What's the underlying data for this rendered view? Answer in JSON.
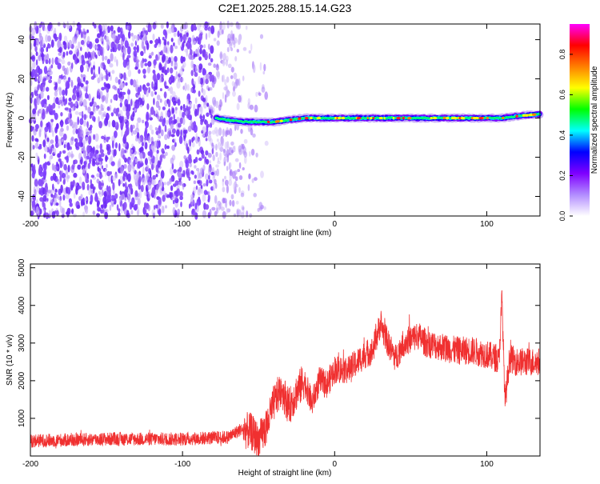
{
  "title": "C2E1.2025.288.15.14.G23",
  "chart_data": [
    {
      "type": "heatmap",
      "xlabel": "Height of straight line (km)",
      "ylabel": "Frequency (Hz)",
      "xlim": [
        -200,
        135
      ],
      "ylim": [
        -50,
        48
      ],
      "x_ticks": [
        -200,
        -100,
        0,
        100
      ],
      "y_ticks": [
        -40,
        -20,
        0,
        20,
        40
      ],
      "grid": false,
      "colorbar": {
        "label": "Normalized spectral amplitude",
        "range": [
          0,
          0.95
        ],
        "ticks": [
          0.0,
          0.2,
          0.4,
          0.6,
          0.8
        ],
        "colormap": [
          "#ffffff",
          "#b28cff",
          "#7f00ff",
          "#0000ff",
          "#00ffff",
          "#00ff00",
          "#ffff00",
          "#ff7f00",
          "#ff0000",
          "#ff00ff"
        ]
      },
      "noise_region_x": [
        -200,
        -40
      ],
      "noise_color": "#7f3fff",
      "signal_track": {
        "x": [
          -78,
          -70,
          -60,
          -50,
          -40,
          -30,
          -20,
          -10,
          0,
          20,
          40,
          60,
          80,
          100,
          105,
          110,
          120,
          135
        ],
        "y": [
          0,
          -1,
          -2,
          -2,
          -2,
          -1,
          0,
          0,
          0,
          0,
          0,
          0,
          0,
          0,
          0,
          0,
          1,
          2
        ]
      }
    },
    {
      "type": "line",
      "xlabel": "Height of straight line (km)",
      "ylabel": "SNR (10 * v/v)",
      "xlim": [
        -200,
        135
      ],
      "ylim": [
        0,
        5100
      ],
      "x_ticks": [
        -200,
        -100,
        0,
        100
      ],
      "y_ticks": [
        1000,
        2000,
        3000,
        4000,
        5000
      ],
      "grid": false,
      "series_color": "#f03030",
      "mean_profile": {
        "x": [
          -200,
          -150,
          -100,
          -70,
          -62,
          -55,
          -50,
          -45,
          -40,
          -35,
          -30,
          -25,
          -20,
          -15,
          -10,
          -5,
          0,
          10,
          20,
          25,
          30,
          35,
          40,
          45,
          50,
          55,
          60,
          70,
          80,
          90,
          100,
          106,
          108,
          110,
          112,
          115,
          120,
          130,
          135
        ],
        "y": [
          400,
          450,
          450,
          500,
          700,
          650,
          400,
          750,
          1400,
          1800,
          1300,
          1700,
          2000,
          1400,
          2000,
          1900,
          2300,
          2300,
          2700,
          2800,
          3500,
          3000,
          2600,
          3000,
          3100,
          3200,
          3000,
          2900,
          2800,
          2800,
          2700,
          2600,
          2500,
          4200,
          1400,
          2600,
          2500,
          2500,
          2500
        ]
      }
    }
  ]
}
